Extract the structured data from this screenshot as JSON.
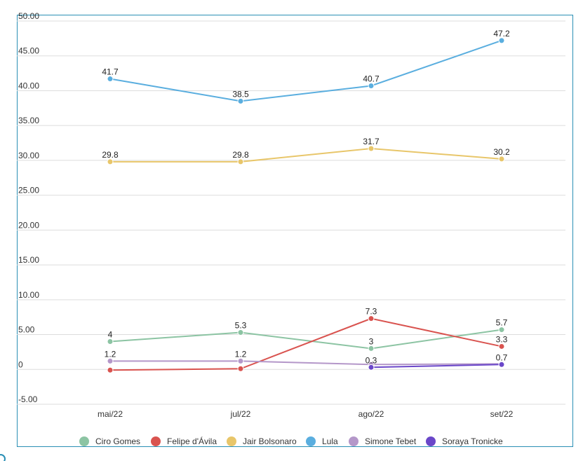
{
  "colors": {
    "Ciro Gomes": "#8cc4a3",
    "Felipe d'Ávila": "#d9534f",
    "Jair Bolsonaro": "#e8c66a",
    "Lula": "#5aaedf",
    "Simone Tebet": "#b497c9",
    "Soraya Tronicke": "#6a47c9",
    "frame": "#2a8fb5",
    "grid": "#dddddd"
  },
  "chart_data": {
    "type": "line",
    "title": "",
    "xlabel": "",
    "ylabel": "",
    "categories": [
      "mai/22",
      "jul/22",
      "ago/22",
      "set/22"
    ],
    "ylim": [
      -5,
      50
    ],
    "yticks": [
      -5,
      0,
      5,
      10,
      15,
      20,
      25,
      30,
      35,
      40,
      45,
      50
    ],
    "ytick_labels": [
      "-5.00",
      "0",
      "5.00",
      "10.00",
      "15.00",
      "20.00",
      "25.00",
      "30.00",
      "35.00",
      "40.00",
      "45.00",
      "50.00"
    ],
    "grid": true,
    "legend_position": "bottom",
    "series": [
      {
        "name": "Ciro Gomes",
        "values": [
          4,
          5.3,
          3,
          5.7
        ],
        "labels": [
          "4",
          "5.3",
          "3",
          "5.7"
        ]
      },
      {
        "name": "Felipe d'Ávila",
        "values": [
          -0.1,
          0.1,
          7.3,
          3.3
        ],
        "labels": [
          "",
          "",
          "7.3",
          "3.3"
        ]
      },
      {
        "name": "Jair Bolsonaro",
        "values": [
          29.8,
          29.8,
          31.7,
          30.2
        ],
        "labels": [
          "29.8",
          "29.8",
          "31.7",
          "30.2"
        ]
      },
      {
        "name": "Lula",
        "values": [
          41.7,
          38.5,
          40.7,
          47.2
        ],
        "labels": [
          "41.7",
          "38.5",
          "40.7",
          "47.2"
        ]
      },
      {
        "name": "Simone Tebet",
        "values": [
          1.2,
          1.2,
          0.7,
          0.8
        ],
        "labels": [
          "1.2",
          "1.2",
          "",
          ""
        ]
      },
      {
        "name": "Soraya Tronicke",
        "values": [
          null,
          null,
          0.3,
          0.7
        ],
        "labels": [
          "",
          "",
          "0.3",
          "0.7"
        ]
      }
    ]
  }
}
